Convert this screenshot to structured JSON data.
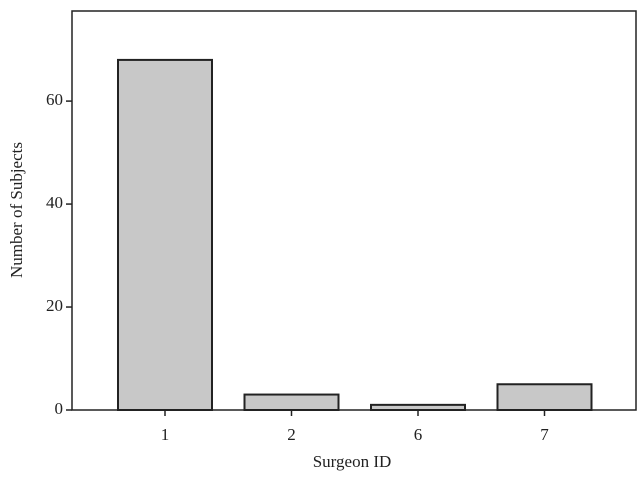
{
  "chart_data": {
    "type": "bar",
    "x_label": "Surgeon ID",
    "y_label": "Number of Subjects",
    "categories": [
      "1",
      "2",
      "6",
      "7"
    ],
    "values": [
      68,
      3,
      1,
      5
    ],
    "color": "#c8c8c8",
    "ylim": [
      0,
      77.5
    ],
    "yticks": [
      0,
      20,
      40,
      60
    ]
  }
}
